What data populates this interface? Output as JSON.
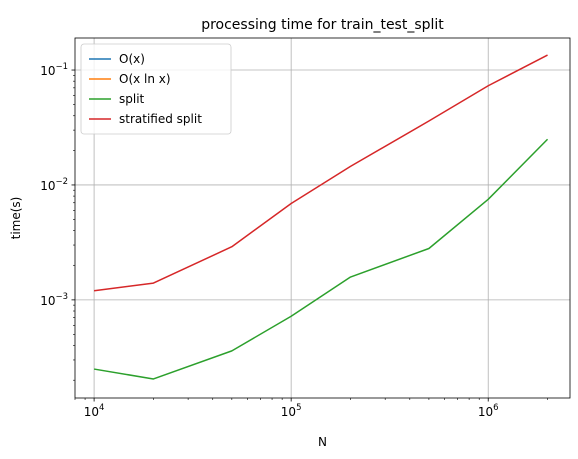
{
  "chart_data": {
    "type": "line",
    "title": "processing time for train_test_split",
    "xlabel": "N",
    "ylabel": "time(s)",
    "xscale": "log",
    "yscale": "log",
    "xlim": [
      8000,
      2600000
    ],
    "ylim": [
      0.00014,
      0.19
    ],
    "grid": true,
    "legend_position": "top-left",
    "x_ticks": [
      {
        "value": 10000,
        "base": "10",
        "exp": "4"
      },
      {
        "value": 100000,
        "base": "10",
        "exp": "5"
      },
      {
        "value": 1000000,
        "base": "10",
        "exp": "6"
      }
    ],
    "y_ticks": [
      {
        "value": 0.001,
        "base": "10",
        "exp": "−3"
      },
      {
        "value": 0.01,
        "base": "10",
        "exp": "−2"
      },
      {
        "value": 0.1,
        "base": "10",
        "exp": "−1"
      }
    ],
    "series": [
      {
        "name": "O(x)",
        "color": "#1f77b4",
        "x": [],
        "values": []
      },
      {
        "name": "O(x ln x)",
        "color": "#ff7f0e",
        "x": [],
        "values": []
      },
      {
        "name": "split",
        "color": "#2ca02c",
        "x": [
          10000,
          20000,
          50000,
          100000,
          200000,
          500000,
          1000000,
          2000000
        ],
        "values": [
          0.00025,
          0.000205,
          0.00036,
          0.00072,
          0.00158,
          0.0028,
          0.0075,
          0.025
        ]
      },
      {
        "name": "stratified split",
        "color": "#d62728",
        "x": [
          10000,
          20000,
          50000,
          100000,
          200000,
          500000,
          1000000,
          2000000
        ],
        "values": [
          0.0012,
          0.0014,
          0.0029,
          0.0069,
          0.0145,
          0.036,
          0.073,
          0.135
        ]
      }
    ]
  }
}
